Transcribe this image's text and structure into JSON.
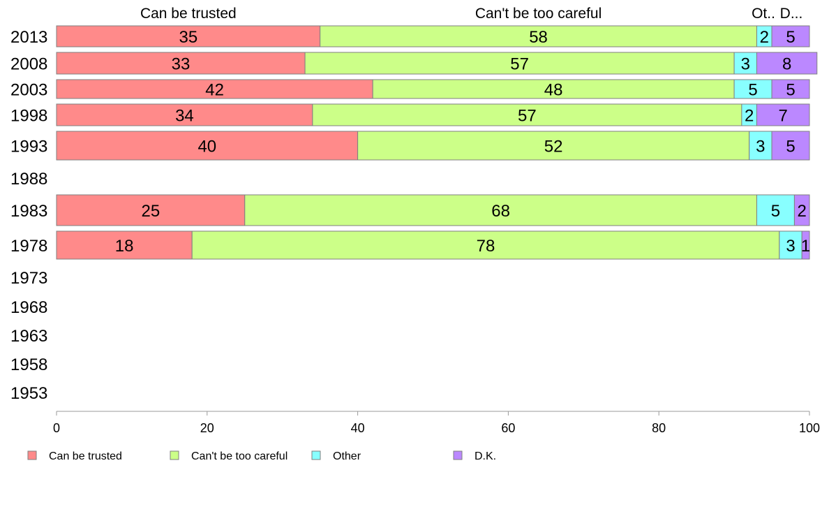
{
  "chart_data": {
    "type": "bar",
    "orientation": "horizontal",
    "stacked": true,
    "categories": [
      "2013",
      "2008",
      "2003",
      "1998",
      "1993",
      "1988",
      "1983",
      "1978",
      "1973",
      "1968",
      "1963",
      "1958",
      "1953"
    ],
    "series": [
      {
        "name": "Can be trusted",
        "color": "#ff8a8a",
        "values": [
          35,
          33,
          42,
          34,
          40,
          null,
          25,
          18,
          null,
          null,
          null,
          null,
          null
        ]
      },
      {
        "name": "Can't be too careful",
        "color": "#ccff88",
        "values": [
          58,
          57,
          48,
          57,
          52,
          null,
          68,
          78,
          null,
          null,
          null,
          null,
          null
        ]
      },
      {
        "name": "Other",
        "color": "#88ffff",
        "values": [
          2,
          3,
          5,
          2,
          3,
          null,
          5,
          3,
          null,
          null,
          null,
          null,
          null
        ]
      },
      {
        "name": "D.K.",
        "color": "#bb88ff",
        "values": [
          5,
          8,
          5,
          7,
          5,
          null,
          2,
          1,
          null,
          null,
          null,
          null,
          null
        ]
      }
    ],
    "column_headers": [
      "Can be trusted",
      "Can't be too careful",
      "Ot..",
      "D..."
    ],
    "xlim": [
      0,
      100
    ],
    "xticks": [
      "0",
      "20",
      "40",
      "60",
      "80",
      "100"
    ],
    "grid": false,
    "legend_position": "bottom-left"
  }
}
